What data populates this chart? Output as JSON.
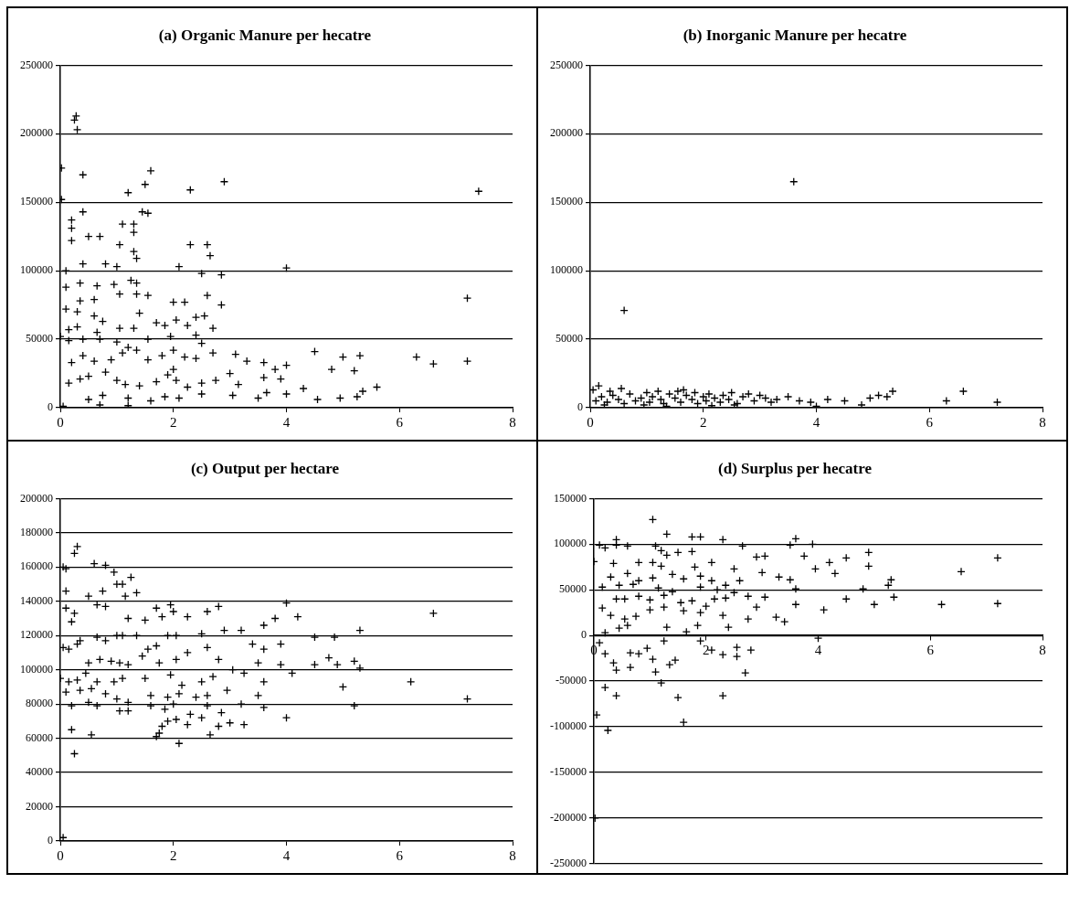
{
  "chart_data": [
    {
      "type": "scatter",
      "title": "(a) Organic Manure per hecatre",
      "color": "#000000",
      "marker": "cross",
      "grid": "y",
      "xlim": [
        0,
        8
      ],
      "xticks": [
        0,
        2,
        4,
        6,
        8
      ],
      "ylim": [
        0,
        250000
      ],
      "yticks": [
        0,
        50000,
        100000,
        150000,
        200000,
        250000
      ],
      "x": [
        0.25,
        0.28,
        0.3,
        0.02,
        0.02,
        0.4,
        1.6,
        1.5,
        2.3,
        1.2,
        2.9,
        7.4,
        0.4,
        1.45,
        1.55,
        0.2,
        0.2,
        1.1,
        1.3,
        1.3,
        0.2,
        0.5,
        0.7,
        1.05,
        2.3,
        2.6,
        2.65,
        1.3,
        1.35,
        0.1,
        0.4,
        0.8,
        1.0,
        2.1,
        4.0,
        2.5,
        2.85,
        1.25,
        1.35,
        0.1,
        0.35,
        0.65,
        0.95,
        1.05,
        1.35,
        1.55,
        2.6,
        2.0,
        2.2,
        0.35,
        0.6,
        2.85,
        7.2,
        0.1,
        0.3,
        0.6,
        0.75,
        1.4,
        2.55,
        2.4,
        0.15,
        0.3,
        0.65,
        1.05,
        1.3,
        1.7,
        1.85,
        2.05,
        2.25,
        2.7,
        0.0,
        0.15,
        0.4,
        0.7,
        1.0,
        1.2,
        1.55,
        1.95,
        2.4,
        2.5,
        0.2,
        0.4,
        0.6,
        0.9,
        1.1,
        1.35,
        1.55,
        1.8,
        2.0,
        2.2,
        2.4,
        2.7,
        3.1,
        3.3,
        3.6,
        3.8,
        4.0,
        4.5,
        5.0,
        5.3,
        6.3,
        6.6,
        7.2,
        0.15,
        0.35,
        0.5,
        0.8,
        1.0,
        1.15,
        1.4,
        1.7,
        1.9,
        2.0,
        2.05,
        2.25,
        2.5,
        2.75,
        3.0,
        3.15,
        3.6,
        3.9,
        4.8,
        5.2,
        0.5,
        0.75,
        1.2,
        1.6,
        1.85,
        2.1,
        2.5,
        3.05,
        3.5,
        3.65,
        4.0,
        4.3,
        4.55,
        4.95,
        5.25,
        5.35,
        5.6,
        0.05,
        1.2,
        0.7
      ],
      "values": [
        210000,
        213000,
        203000,
        175000,
        152000,
        170000,
        173000,
        163000,
        159000,
        157000,
        165000,
        158000,
        143000,
        143000,
        142000,
        137000,
        131000,
        134000,
        134000,
        128000,
        122000,
        125000,
        125000,
        119000,
        119000,
        119000,
        111000,
        114000,
        109000,
        100000,
        105000,
        105000,
        103000,
        103000,
        102000,
        98000,
        97000,
        93000,
        91000,
        88000,
        91000,
        89000,
        90000,
        83000,
        83000,
        82000,
        82000,
        77000,
        77000,
        78000,
        79000,
        75000,
        80000,
        72000,
        70000,
        67000,
        63000,
        69000,
        67000,
        66000,
        57000,
        59000,
        55000,
        58000,
        58000,
        62000,
        60000,
        64000,
        60000,
        58000,
        52000,
        49000,
        50000,
        50000,
        48000,
        44000,
        50000,
        52000,
        53000,
        47000,
        33000,
        38000,
        34000,
        35000,
        40000,
        42000,
        35000,
        38000,
        42000,
        37000,
        36000,
        40000,
        39000,
        34000,
        33000,
        28000,
        31000,
        41000,
        37000,
        38000,
        37000,
        32000,
        34000,
        18000,
        21000,
        23000,
        26000,
        20000,
        17000,
        16000,
        19000,
        24000,
        28000,
        20000,
        15000,
        18000,
        20000,
        25000,
        17000,
        22000,
        21000,
        28000,
        27000,
        6000,
        9000,
        7000,
        5000,
        8000,
        7000,
        10000,
        9000,
        7000,
        11000,
        10000,
        14000,
        6000,
        7000,
        8000,
        12000,
        15000,
        1000,
        1500,
        2000
      ]
    },
    {
      "type": "scatter",
      "title": "(b) Inorganic Manure per hecatre",
      "color": "#000000",
      "marker": "cross",
      "grid": "y",
      "xlim": [
        0,
        8
      ],
      "xticks": [
        0,
        2,
        4,
        6,
        8
      ],
      "ylim": [
        0,
        250000
      ],
      "yticks": [
        0,
        50000,
        100000,
        150000,
        200000,
        250000
      ],
      "x": [
        0.6,
        3.6,
        0.15,
        0.05,
        0.55,
        0.1,
        0.2,
        0.3,
        0.4,
        0.5,
        0.6,
        0.7,
        0.8,
        0.9,
        1.0,
        1.05,
        1.1,
        1.2,
        1.25,
        1.3,
        1.4,
        1.5,
        1.55,
        1.6,
        1.7,
        1.8,
        1.85,
        1.9,
        2.0,
        2.05,
        2.1,
        2.2,
        2.3,
        2.35,
        2.45,
        2.5,
        2.6,
        2.7,
        2.8,
        2.9,
        3.0,
        3.1,
        3.2,
        3.3,
        3.5,
        3.7,
        3.9,
        4.0,
        4.2,
        4.5,
        4.8,
        4.95,
        5.1,
        5.25,
        5.35,
        6.3,
        6.6,
        7.2,
        0.25,
        1.35,
        2.15,
        0.35,
        0.95,
        1.65,
        2.55
      ],
      "values": [
        71000,
        165000,
        16000,
        13000,
        14000,
        5000,
        8000,
        4000,
        9000,
        6000,
        3000,
        10000,
        5000,
        7000,
        11000,
        4000,
        8000,
        12000,
        6000,
        3000,
        10000,
        7000,
        12000,
        4000,
        9000,
        6000,
        11000,
        3000,
        8000,
        5000,
        10000,
        7000,
        4000,
        9000,
        6000,
        11000,
        3000,
        8000,
        10000,
        5000,
        9000,
        7000,
        4000,
        6000,
        8000,
        5000,
        4000,
        1000,
        6000,
        5000,
        2000,
        7000,
        9000,
        8000,
        12000,
        5000,
        12000,
        4000,
        2000,
        1000,
        1500,
        12000,
        2000,
        13000,
        2000
      ]
    },
    {
      "type": "scatter",
      "title": "(c) Output per hectare",
      "color": "#000000",
      "marker": "cross",
      "grid": "y",
      "xlim": [
        0,
        8
      ],
      "xticks": [
        0,
        2,
        4,
        6,
        8
      ],
      "ylim": [
        0,
        200000
      ],
      "yticks": [
        0,
        20000,
        40000,
        60000,
        80000,
        100000,
        120000,
        140000,
        160000,
        180000,
        200000
      ],
      "x": [
        0.25,
        0.3,
        0.1,
        0.1,
        0.05,
        0.6,
        0.8,
        0.95,
        1.0,
        1.1,
        1.15,
        1.35,
        1.25,
        0.5,
        0.65,
        0.8,
        0.75,
        1.7,
        1.8,
        1.95,
        2.0,
        2.25,
        2.6,
        2.8,
        0.1,
        0.25,
        0.2,
        1.2,
        1.5,
        3.6,
        3.8,
        4.0,
        4.2,
        6.6,
        0.05,
        0.15,
        0.3,
        0.35,
        0.65,
        0.8,
        1.0,
        1.1,
        1.35,
        1.55,
        1.7,
        1.9,
        2.05,
        2.5,
        2.9,
        3.2,
        3.4,
        3.6,
        3.9,
        4.5,
        4.85,
        5.3,
        0.5,
        0.7,
        0.9,
        1.05,
        1.2,
        1.45,
        1.75,
        2.05,
        2.25,
        2.6,
        2.8,
        3.05,
        3.5,
        3.9,
        4.1,
        4.5,
        4.75,
        4.9,
        5.2,
        5.3,
        0.0,
        0.15,
        0.3,
        0.45,
        0.65,
        0.95,
        1.1,
        1.5,
        1.95,
        2.15,
        2.5,
        2.7,
        3.25,
        3.6,
        0.1,
        0.35,
        0.55,
        0.8,
        1.0,
        1.2,
        1.6,
        1.9,
        2.1,
        2.4,
        2.6,
        2.95,
        3.5,
        5.0,
        6.2,
        0.2,
        0.5,
        0.65,
        1.05,
        1.2,
        1.6,
        1.85,
        2.0,
        2.3,
        2.6,
        2.85,
        3.2,
        3.6,
        5.2,
        7.2,
        1.8,
        1.9,
        2.05,
        2.25,
        2.5,
        2.8,
        3.0,
        3.25,
        4.0,
        0.2,
        0.55,
        1.75,
        1.7,
        2.65,
        2.1,
        0.25,
        0.05
      ],
      "values": [
        168000,
        172000,
        159000,
        146000,
        160000,
        162000,
        161000,
        157000,
        150000,
        150000,
        143000,
        145000,
        154000,
        143000,
        138000,
        137000,
        146000,
        136000,
        131000,
        138000,
        134000,
        131000,
        134000,
        137000,
        136000,
        133000,
        128000,
        130000,
        129000,
        126000,
        130000,
        139000,
        131000,
        133000,
        113000,
        112000,
        115000,
        117000,
        119000,
        117000,
        120000,
        120000,
        120000,
        112000,
        114000,
        120000,
        120000,
        121000,
        123000,
        123000,
        115000,
        112000,
        115000,
        119000,
        119000,
        123000,
        104000,
        106000,
        105000,
        104000,
        103000,
        108000,
        104000,
        106000,
        110000,
        113000,
        106000,
        100000,
        104000,
        103000,
        98000,
        103000,
        107000,
        103000,
        105000,
        101000,
        95000,
        93000,
        94000,
        98000,
        93000,
        93000,
        95000,
        95000,
        97000,
        91000,
        93000,
        96000,
        98000,
        93000,
        87000,
        88000,
        89000,
        86000,
        83000,
        81000,
        85000,
        84000,
        86000,
        84000,
        85000,
        88000,
        85000,
        90000,
        93000,
        79000,
        81000,
        79000,
        76000,
        76000,
        79000,
        77000,
        80000,
        74000,
        79000,
        75000,
        80000,
        78000,
        79000,
        83000,
        67000,
        70000,
        71000,
        68000,
        72000,
        67000,
        69000,
        68000,
        72000,
        65000,
        62000,
        63000,
        61000,
        62000,
        57000,
        51000,
        2000
      ]
    },
    {
      "type": "scatter",
      "title": "(d) Surplus per hecatre",
      "color": "#000000",
      "marker": "cross",
      "grid": "y",
      "xlim": [
        0,
        8
      ],
      "xticks": [
        0,
        2,
        4,
        6,
        8
      ],
      "ylim": [
        -250000,
        150000
      ],
      "yticks": [
        -250000,
        -200000,
        -150000,
        -100000,
        -50000,
        0,
        50000,
        100000,
        150000
      ],
      "x": [
        1.05,
        1.3,
        0.4,
        1.75,
        1.9,
        2.3,
        3.6,
        0.1,
        0.2,
        0.4,
        0.6,
        1.1,
        1.2,
        1.3,
        1.5,
        1.75,
        2.65,
        3.5,
        3.9,
        0.0,
        0.35,
        0.8,
        1.05,
        1.2,
        1.8,
        2.1,
        2.5,
        2.9,
        3.05,
        3.75,
        4.2,
        4.5,
        4.9,
        4.9,
        7.2,
        0.3,
        0.6,
        0.8,
        1.05,
        1.4,
        1.6,
        1.9,
        2.1,
        2.35,
        2.6,
        3.0,
        3.3,
        3.5,
        3.95,
        4.3,
        5.3,
        6.55,
        0.15,
        0.45,
        0.7,
        1.15,
        1.4,
        1.9,
        2.2,
        2.5,
        2.75,
        3.6,
        4.8,
        5.25,
        0.4,
        0.55,
        0.8,
        1.0,
        1.25,
        1.55,
        1.75,
        2.15,
        2.35,
        3.05,
        3.6,
        4.5,
        5.0,
        5.35,
        6.2,
        7.2,
        0.15,
        0.3,
        0.55,
        0.75,
        1.0,
        1.25,
        1.6,
        1.9,
        2.0,
        2.3,
        2.75,
        2.9,
        3.25,
        3.4,
        4.1,
        0.45,
        0.6,
        1.3,
        1.65,
        1.85,
        2.4,
        0.2,
        0.1,
        0.2,
        0.35,
        0.4,
        0.65,
        0.65,
        0.8,
        0.95,
        1.05,
        1.1,
        1.2,
        1.35,
        1.45,
        1.25,
        1.9,
        2.1,
        2.3,
        2.55,
        2.55,
        2.8,
        2.7,
        4.0,
        0.2,
        0.4,
        1.5,
        2.3,
        1.6,
        0.05,
        0.25,
        0.02
      ],
      "values": [
        127000,
        111000,
        105000,
        108000,
        108000,
        105000,
        106000,
        99000,
        96000,
        99000,
        98000,
        98000,
        93000,
        88000,
        91000,
        92000,
        98000,
        99000,
        100000,
        81000,
        79000,
        80000,
        80000,
        76000,
        75000,
        80000,
        73000,
        86000,
        87000,
        87000,
        80000,
        85000,
        91000,
        76000,
        85000,
        64000,
        68000,
        60000,
        63000,
        67000,
        62000,
        65000,
        60000,
        55000,
        60000,
        69000,
        64000,
        61000,
        73000,
        68000,
        61000,
        70000,
        53000,
        55000,
        56000,
        52000,
        48000,
        53000,
        50000,
        47000,
        43000,
        51000,
        51000,
        55000,
        40000,
        40000,
        43000,
        39000,
        44000,
        36000,
        38000,
        40000,
        41000,
        42000,
        34000,
        40000,
        34000,
        42000,
        34000,
        35000,
        30000,
        22000,
        18000,
        21000,
        28000,
        31000,
        27000,
        25000,
        32000,
        22000,
        18000,
        31000,
        20000,
        15000,
        28000,
        8000,
        11000,
        9000,
        4000,
        11000,
        9000,
        3000,
        -8000,
        -20000,
        -30000,
        -38000,
        -35000,
        -19000,
        -20000,
        -14000,
        -26000,
        -40000,
        -52000,
        -32000,
        -27000,
        -6000,
        -6000,
        -16000,
        -21000,
        -13000,
        -23000,
        -16000,
        -41000,
        -3000,
        -57000,
        -66000,
        -68000,
        -66000,
        -95000,
        -87000,
        -104000,
        -200000
      ]
    }
  ]
}
